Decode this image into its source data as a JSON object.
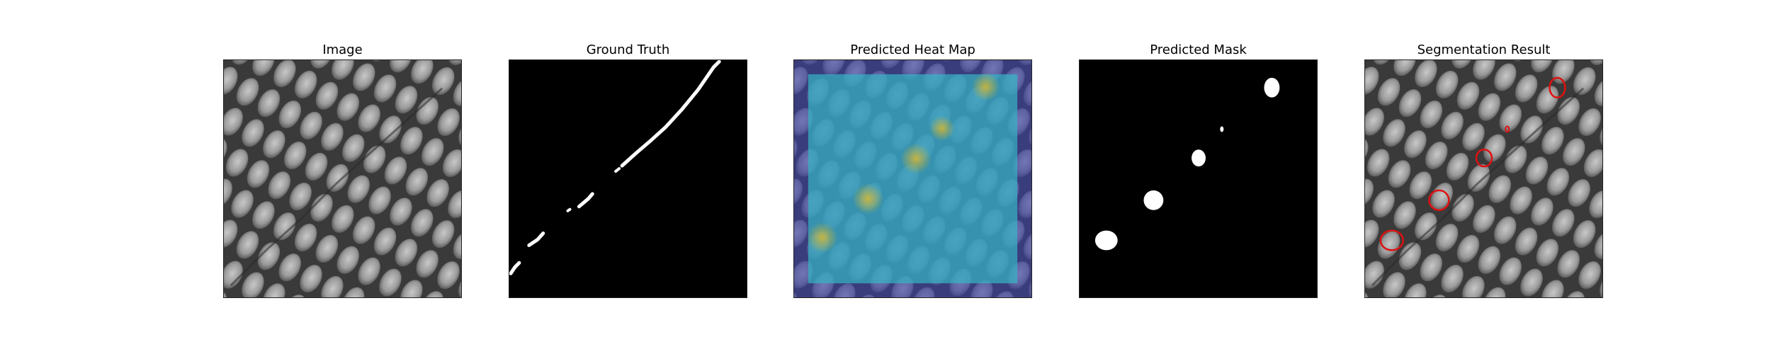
{
  "figure": {
    "panels": [
      {
        "id": "image",
        "title": "Image"
      },
      {
        "id": "ground-truth",
        "title": "Ground Truth"
      },
      {
        "id": "heatmap",
        "title": "Predicted Heat Map"
      },
      {
        "id": "mask",
        "title": "Predicted Mask"
      },
      {
        "id": "segmentation",
        "title": "Segmentation Result"
      }
    ],
    "colors": {
      "background": "#ffffff",
      "texture_dark": "#3a3a3a",
      "texture_light": "#b4b4b4",
      "mask_foreground": "#ffffff",
      "mask_background": "#000000",
      "heatmap_low": "#3b3fa8",
      "heatmap_mid": "#35b7c4",
      "heatmap_high": "#c9b33a",
      "contour": "#e01010"
    }
  }
}
